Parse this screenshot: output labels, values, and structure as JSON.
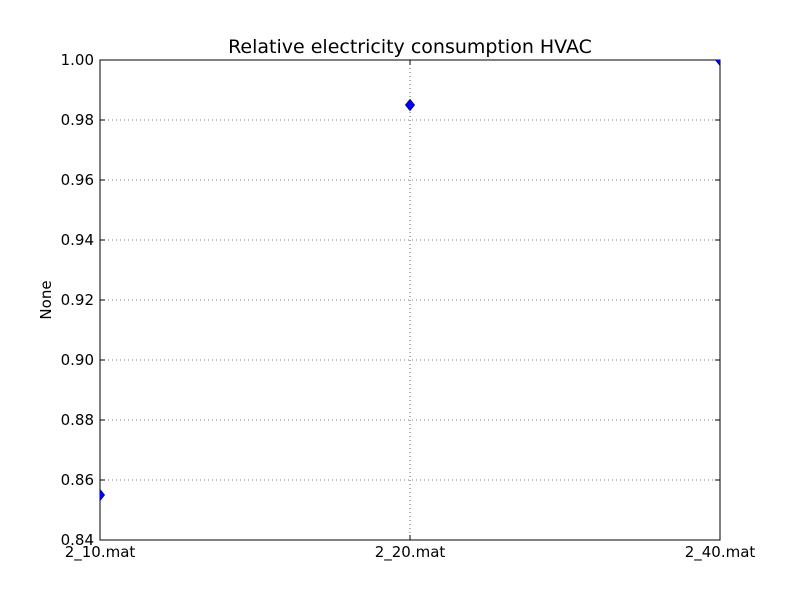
{
  "chart_data": {
    "type": "scatter",
    "title": "Relative electricity consumption HVAC",
    "xlabel": "",
    "ylabel": "None",
    "categories": [
      "2_10.mat",
      "2_20.mat",
      "2_40.mat"
    ],
    "series": [
      {
        "values": [
          0.855,
          0.985,
          1.0
        ]
      }
    ],
    "ylim": [
      0.84,
      1.0
    ],
    "yticks": [
      "0.84",
      "0.86",
      "0.88",
      "0.90",
      "0.92",
      "0.94",
      "0.96",
      "0.98",
      "1.00"
    ],
    "grid": true,
    "marker": "diamond",
    "colors": {
      "marker_fill": "#0000ff",
      "marker_edge": "#000080",
      "grid": "#000000",
      "axes": "#000000"
    }
  }
}
